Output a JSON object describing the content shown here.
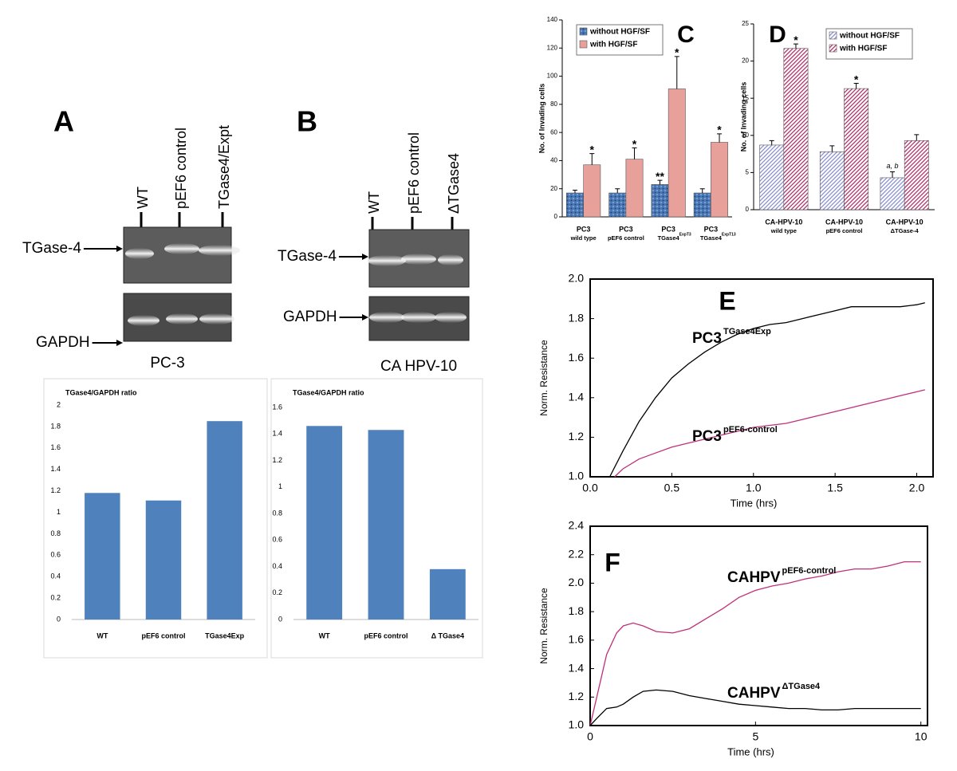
{
  "blots": [
    {
      "panel": "A",
      "lanes": [
        "WT",
        "pEF6 control",
        "TGase4/Expt"
      ],
      "bands": [
        "TGase-4",
        "GAPDH"
      ],
      "cell_line": "PC-3"
    },
    {
      "panel": "B",
      "lanes": [
        "WT",
        "pEF6 control",
        "ΔTGase4"
      ],
      "bands": [
        "TGase-4",
        "GAPDH"
      ],
      "cell_line": "CA HPV-10"
    }
  ],
  "chart_data": [
    {
      "type": "bar",
      "title": "TGase4/GAPDH ratio",
      "categories": [
        "WT",
        "pEF6 control",
        "TGase4Exp"
      ],
      "values": [
        1.18,
        1.11,
        1.85
      ],
      "color": "#4f81bd",
      "ylim": [
        0,
        2
      ],
      "yticks": [
        0,
        0.2,
        0.4,
        0.6,
        0.8,
        1,
        1.2,
        1.4,
        1.6,
        1.8,
        2
      ],
      "grid": false
    },
    {
      "type": "bar",
      "title": "TGase4/GAPDH ratio",
      "categories": [
        "WT",
        "pEF6 control",
        "Δ TGase4"
      ],
      "values": [
        1.46,
        1.43,
        0.38
      ],
      "color": "#4f81bd",
      "ylim": [
        0,
        1.6
      ],
      "yticks": [
        0,
        0.2,
        0.4,
        0.6,
        0.8,
        1,
        1.2,
        1.4,
        1.6
      ],
      "grid": false
    },
    {
      "type": "grouped_bar",
      "panel": "C",
      "ylabel": "No. of Invading cells",
      "categories": [
        [
          "PC3",
          "wild type"
        ],
        [
          "PC3",
          "pEF6 control"
        ],
        [
          "PC3",
          "TGase4"
        ],
        [
          "PC3",
          "TGase4"
        ]
      ],
      "category_sups": [
        null,
        null,
        "ExpT3",
        "ExpT13"
      ],
      "series": [
        {
          "name": "without HGF/SF",
          "color": "#4a78b5",
          "pattern": "dots",
          "values": [
            17,
            17,
            23,
            17
          ],
          "errors": [
            2,
            3,
            3,
            3
          ],
          "annotations": [
            null,
            null,
            "**",
            null
          ]
        },
        {
          "name": "with HGF/SF",
          "color": "#e8a09a",
          "pattern": "solid",
          "values": [
            37,
            41,
            91,
            53
          ],
          "errors": [
            8,
            8,
            23,
            6
          ],
          "annotations": [
            "*",
            "*",
            "*",
            "*"
          ]
        }
      ],
      "ylim": [
        0,
        140
      ],
      "yticks": [
        0,
        20,
        40,
        60,
        80,
        100,
        120,
        140
      ]
    },
    {
      "type": "grouped_bar",
      "panel": "D",
      "ylabel": "No. of Invading cells",
      "categories": [
        [
          "CA-HPV-10",
          "wild type"
        ],
        [
          "CA-HPV-10",
          "pEF6 control"
        ],
        [
          "CA-HPV-10",
          "ΔTGase-4"
        ]
      ],
      "series": [
        {
          "name": "without HGF/SF",
          "color": "#8a8fd0",
          "pattern": "hatch",
          "values": [
            8.7,
            7.8,
            4.3
          ],
          "errors": [
            0.6,
            0.8,
            0.8
          ],
          "annotations": [
            null,
            null,
            "a, b"
          ]
        },
        {
          "name": "with HGF/SF",
          "color": "#b0306a",
          "pattern": "hatch",
          "values": [
            21.7,
            16.3,
            9.3
          ],
          "errors": [
            0.6,
            0.7,
            0.8
          ],
          "annotations": [
            "*",
            "*",
            null
          ]
        }
      ],
      "ylim": [
        0,
        25
      ],
      "yticks": [
        0,
        5,
        10,
        15,
        20,
        25
      ]
    },
    {
      "type": "line",
      "panel": "E",
      "xlabel": "Time (hrs)",
      "ylabel": "Norm. Resistance",
      "xlim": [
        0,
        2.1
      ],
      "xticks": [
        {
          "value": 0,
          "label": "0.0"
        },
        0.5,
        {
          "value": 1,
          "label": "1.0"
        },
        1.5,
        {
          "value": 2,
          "label": "2.0"
        }
      ],
      "ylim": [
        1,
        2
      ],
      "yticks": [
        {
          "value": 1,
          "label": "1.0"
        },
        1.2,
        1.4,
        1.6,
        1.8,
        {
          "value": 2,
          "label": "2.0"
        }
      ],
      "series": [
        {
          "name": "PC3",
          "name_sup": "TGase4Exp",
          "color": "#000000",
          "x": [
            0.12,
            0.2,
            0.3,
            0.4,
            0.5,
            0.6,
            0.7,
            0.8,
            0.9,
            1.0,
            1.1,
            1.2,
            1.3,
            1.4,
            1.5,
            1.6,
            1.7,
            1.8,
            1.9,
            2.0,
            2.05
          ],
          "values": [
            1.0,
            1.13,
            1.28,
            1.4,
            1.5,
            1.57,
            1.63,
            1.68,
            1.72,
            1.75,
            1.77,
            1.78,
            1.8,
            1.82,
            1.84,
            1.86,
            1.86,
            1.86,
            1.86,
            1.87,
            1.88
          ]
        },
        {
          "name": "PC3",
          "name_sup": "pEF6-control",
          "color": "#c0307a",
          "x": [
            0.15,
            0.2,
            0.3,
            0.4,
            0.5,
            0.6,
            0.7,
            0.8,
            0.9,
            1.0,
            1.1,
            1.2,
            1.3,
            1.4,
            1.5,
            1.6,
            1.7,
            1.8,
            1.9,
            2.0,
            2.05
          ],
          "values": [
            1.0,
            1.04,
            1.09,
            1.12,
            1.15,
            1.17,
            1.19,
            1.21,
            1.23,
            1.25,
            1.26,
            1.27,
            1.29,
            1.31,
            1.33,
            1.35,
            1.37,
            1.39,
            1.41,
            1.43,
            1.44
          ]
        }
      ]
    },
    {
      "type": "line",
      "panel": "F",
      "xlabel": "Time (hrs)",
      "ylabel": "Norm. Resistance",
      "xlim": [
        0,
        10.2
      ],
      "xticks": [
        0,
        5,
        10
      ],
      "ylim": [
        1,
        2.4
      ],
      "yticks": [
        {
          "value": 1,
          "label": "1.0"
        },
        1.2,
        1.4,
        1.6,
        1.8,
        {
          "value": 2,
          "label": "2.0"
        },
        2.2,
        2.4
      ],
      "series": [
        {
          "name": "CAHPV",
          "name_sup": "pEF6-control",
          "color": "#c0307a",
          "x": [
            0,
            0.2,
            0.5,
            0.8,
            1,
            1.3,
            1.6,
            2,
            2.5,
            3,
            3.5,
            4,
            4.5,
            5,
            5.5,
            6,
            6.5,
            7,
            7.5,
            8,
            8.5,
            9,
            9.5,
            10
          ],
          "values": [
            1.0,
            1.2,
            1.5,
            1.65,
            1.7,
            1.72,
            1.7,
            1.66,
            1.65,
            1.68,
            1.75,
            1.82,
            1.9,
            1.95,
            1.98,
            2.0,
            2.03,
            2.05,
            2.08,
            2.1,
            2.1,
            2.12,
            2.15,
            2.15
          ]
        },
        {
          "name": "CAHPV",
          "name_sup": "ΔTGase4",
          "color": "#000000",
          "x": [
            0,
            0.2,
            0.5,
            0.8,
            1,
            1.3,
            1.6,
            2,
            2.5,
            3,
            3.5,
            4,
            4.5,
            5,
            5.5,
            6,
            6.5,
            7,
            7.5,
            8,
            8.5,
            9,
            9.5,
            10
          ],
          "values": [
            1.0,
            1.05,
            1.12,
            1.13,
            1.15,
            1.2,
            1.24,
            1.25,
            1.24,
            1.21,
            1.19,
            1.17,
            1.15,
            1.14,
            1.13,
            1.12,
            1.12,
            1.11,
            1.11,
            1.12,
            1.12,
            1.12,
            1.12,
            1.12
          ]
        }
      ]
    }
  ]
}
